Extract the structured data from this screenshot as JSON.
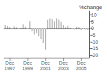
{
  "chart_data": {
    "type": "bar",
    "title": "%change",
    "categories": [
      null,
      null,
      "Dec\n1997",
      null,
      null,
      null,
      null,
      null,
      null,
      null,
      "Dec\n1999",
      null,
      null,
      null,
      null,
      null,
      null,
      null,
      "Dec\n2001",
      null,
      null,
      null,
      null,
      null,
      null,
      null,
      "Dec\n2003",
      null,
      null,
      null,
      null,
      null,
      null,
      null,
      "Dec\n2005",
      null,
      null,
      null
    ],
    "values": [
      2.5,
      1.8,
      0.8,
      -0.3,
      1.5,
      0.8,
      -0.3,
      0.4,
      3.0,
      1.2,
      -0.3,
      5.5,
      -2.0,
      -4.5,
      -3.5,
      -6.0,
      -8.0,
      -11.0,
      -16.0,
      6.5,
      7.5,
      7.0,
      5.5,
      7.5,
      6.5,
      5.0,
      2.5,
      0.8,
      2.0,
      0.4,
      -0.4,
      -0.8,
      1.2,
      0.8,
      -1.2,
      -0.4,
      -0.8,
      -1.2
    ],
    "color": "#b3b3b3",
    "ylim": [
      -22,
      13
    ],
    "yticks": [
      10,
      5,
      0,
      -5,
      -10,
      -15,
      -20
    ],
    "grid": false
  }
}
